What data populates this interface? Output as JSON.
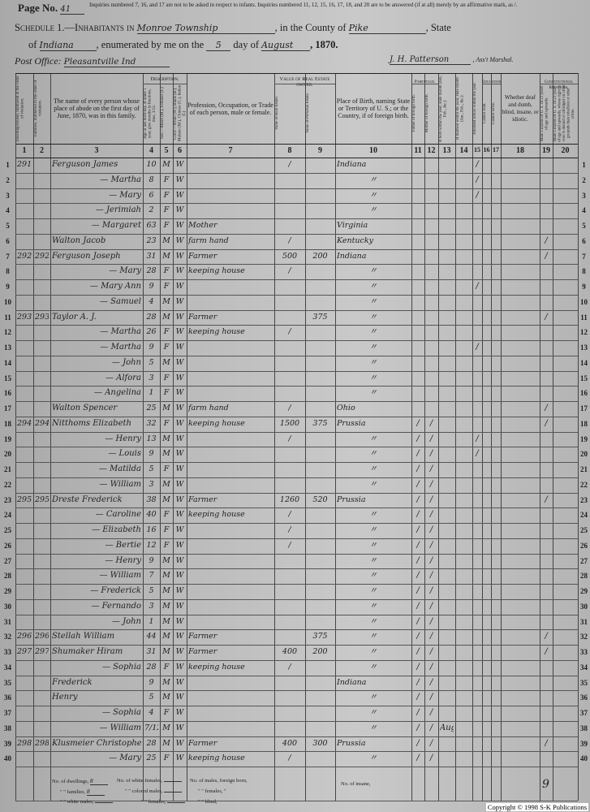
{
  "header": {
    "page_label": "Page No.",
    "page_number": "41",
    "instructions": "Inquiries numbered 7, 16, and 17 are not to be asked in respect to infants. Inquiries numbered 11, 12, 15, 16, 17, 18, and 20 are to be answered (if at all) merely by an affirmative mark, as /.",
    "schedule_label": "Schedule 1.—Inhabitants in",
    "township": "Monroe Township",
    "county_label": ", in the County of",
    "county": "Pike",
    "state_label": ", State",
    "of_label": "of",
    "state": "Indiana",
    "enumerated_label": ", enumerated by me on the",
    "day": "5",
    "day_of_label": "day of",
    "month": "August",
    "year": ", 1870.",
    "post_office_label": "Post Office:",
    "post_office": "Pleasantville Ind",
    "marshal_signature": "J. H. Patterson",
    "marshal_label": ", Ass't Marshal."
  },
  "columns": {
    "group_description": "Description.",
    "group_value": "Value of Real Estate owned.",
    "group_parentage": "Parentage.",
    "group_education": "Education.",
    "group_constitutional": "Constitutional Relations.",
    "c1": "Dwelling-houses, numbered in the order of visitation.",
    "c2": "Families, numbered in the order of visitation.",
    "c3": "The name of every person whose place of abode on the first day of June, 1870, was in this family.",
    "c4": "Age at last birth-day. If under 1 year, give months in fractions, thus, 3/12.",
    "c5": "Sex.—Males (M.), Females (F.)",
    "c6": "Color.—White (W.), Black (B.), Mulatto (M.), Chinese (C.), Indian (I.)",
    "c7": "Profession, Occupation, or Trade of each person, male or female.",
    "c8": "Value of Real Estate.",
    "c9": "Value of Personal Estate.",
    "c10": "Place of Birth, naming State or Territory of U. S.; or the Country, if of foreign birth.",
    "c11": "Father of foreign birth.",
    "c12": "Mother of foreign birth.",
    "c13": "If born within the year, state month (Jan., Feb., &c.)",
    "c14": "If married within the year, state month (Jan., Feb., &c.)",
    "c15": "Attended school within the year.",
    "c16": "Cannot read.",
    "c17": "Cannot write.",
    "c18": "Whether deaf and dumb, blind, insane, or idiotic.",
    "c19": "Male Citizens of U. S. of 21 years of age and upwards.",
    "c20": "Male Citizens of U. S. of 21 years of age and upwards, whose right to vote is denied or abridged on other grounds than rebellion or other crime.",
    "numbers": [
      "1",
      "2",
      "3",
      "4",
      "5",
      "6",
      "7",
      "8",
      "9",
      "10",
      "11",
      "12",
      "13",
      "14",
      "15",
      "16",
      "17",
      "18",
      "19",
      "20"
    ]
  },
  "rows": [
    [
      "291",
      "",
      "Ferguson James",
      "10",
      "M",
      "W",
      "",
      "/",
      "",
      "Indiana",
      "",
      "",
      "",
      "",
      "/",
      "",
      "",
      "",
      "",
      ""
    ],
    [
      "",
      "",
      "— Martha",
      "8",
      "F",
      "W",
      "",
      "",
      "",
      "〃",
      "",
      "",
      "",
      "",
      "/",
      "",
      "",
      "",
      "",
      ""
    ],
    [
      "",
      "",
      "— Mary",
      "6",
      "F",
      "W",
      "",
      "",
      "",
      "〃",
      "",
      "",
      "",
      "",
      "/",
      "",
      "",
      "",
      "",
      ""
    ],
    [
      "",
      "",
      "— Jerimiah",
      "2",
      "F",
      "W",
      "",
      "",
      "",
      "〃",
      "",
      "",
      "",
      "",
      "",
      "",
      "",
      "",
      "",
      ""
    ],
    [
      "",
      "",
      "— Margaret",
      "63",
      "F",
      "W",
      "Mother",
      "",
      "",
      "Virginia",
      "",
      "",
      "",
      "",
      "",
      "",
      "",
      "",
      "",
      ""
    ],
    [
      "",
      "",
      "Walton Jacob",
      "23",
      "M",
      "W",
      "farm hand",
      "/",
      "",
      "Kentucky",
      "",
      "",
      "",
      "",
      "",
      "",
      "",
      "",
      "/",
      ""
    ],
    [
      "292",
      "292",
      "Ferguson Joseph",
      "31",
      "M",
      "W",
      "Farmer",
      "500",
      "200",
      "Indiana",
      "",
      "",
      "",
      "",
      "",
      "",
      "",
      "",
      "/",
      ""
    ],
    [
      "",
      "",
      "— Mary",
      "28",
      "F",
      "W",
      "keeping house",
      "/",
      "",
      "〃",
      "",
      "",
      "",
      "",
      "",
      "",
      "",
      "",
      "",
      ""
    ],
    [
      "",
      "",
      "— Mary Ann",
      "9",
      "F",
      "W",
      "",
      "",
      "",
      "〃",
      "",
      "",
      "",
      "",
      "/",
      "",
      "",
      "",
      "",
      ""
    ],
    [
      "",
      "",
      "— Samuel",
      "4",
      "M",
      "W",
      "",
      "",
      "",
      "〃",
      "",
      "",
      "",
      "",
      "",
      "",
      "",
      "",
      "",
      ""
    ],
    [
      "293",
      "293",
      "Taylor A. J.",
      "28",
      "M",
      "W",
      "Farmer",
      "",
      "375",
      "〃",
      "",
      "",
      "",
      "",
      "",
      "",
      "",
      "",
      "/",
      ""
    ],
    [
      "",
      "",
      "— Martha",
      "26",
      "F",
      "W",
      "keeping house",
      "/",
      "",
      "〃",
      "",
      "",
      "",
      "",
      "",
      "",
      "",
      "",
      "",
      ""
    ],
    [
      "",
      "",
      "— Martha",
      "9",
      "F",
      "W",
      "",
      "",
      "",
      "〃",
      "",
      "",
      "",
      "",
      "/",
      "",
      "",
      "",
      "",
      ""
    ],
    [
      "",
      "",
      "— John",
      "5",
      "M",
      "W",
      "",
      "",
      "",
      "〃",
      "",
      "",
      "",
      "",
      "",
      "",
      "",
      "",
      "",
      ""
    ],
    [
      "",
      "",
      "— Alfora",
      "3",
      "F",
      "W",
      "",
      "",
      "",
      "〃",
      "",
      "",
      "",
      "",
      "",
      "",
      "",
      "",
      "",
      ""
    ],
    [
      "",
      "",
      "— Angelina",
      "1",
      "F",
      "W",
      "",
      "",
      "",
      "〃",
      "",
      "",
      "",
      "",
      "",
      "",
      "",
      "",
      "",
      ""
    ],
    [
      "",
      "",
      "Walton Spencer",
      "25",
      "M",
      "W",
      "farm hand",
      "/",
      "",
      "Ohio",
      "",
      "",
      "",
      "",
      "",
      "",
      "",
      "",
      "/",
      ""
    ],
    [
      "294",
      "294",
      "Nitthoms Elizabeth",
      "32",
      "F",
      "W",
      "keeping house",
      "1500",
      "375",
      "Prussia",
      "/",
      "/",
      "",
      "",
      "",
      "",
      "",
      "",
      "/",
      ""
    ],
    [
      "",
      "",
      "— Henry",
      "13",
      "M",
      "W",
      "",
      "/",
      "",
      "〃",
      "/",
      "/",
      "",
      "",
      "/",
      "",
      "",
      "",
      "",
      ""
    ],
    [
      "",
      "",
      "— Louis",
      "9",
      "M",
      "W",
      "",
      "",
      "",
      "〃",
      "/",
      "/",
      "",
      "",
      "/",
      "",
      "",
      "",
      "",
      ""
    ],
    [
      "",
      "",
      "— Matilda",
      "5",
      "F",
      "W",
      "",
      "",
      "",
      "〃",
      "/",
      "/",
      "",
      "",
      "",
      "",
      "",
      "",
      "",
      ""
    ],
    [
      "",
      "",
      "— William",
      "3",
      "M",
      "W",
      "",
      "",
      "",
      "〃",
      "/",
      "/",
      "",
      "",
      "",
      "",
      "",
      "",
      "",
      ""
    ],
    [
      "295",
      "295",
      "Dreste Frederick",
      "38",
      "M",
      "W",
      "Farmer",
      "1260",
      "520",
      "Prussia",
      "/",
      "/",
      "",
      "",
      "",
      "",
      "",
      "",
      "/",
      ""
    ],
    [
      "",
      "",
      "— Caroline",
      "40",
      "F",
      "W",
      "keeping house",
      "/",
      "",
      "〃",
      "/",
      "/",
      "",
      "",
      "",
      "",
      "",
      "",
      "",
      ""
    ],
    [
      "",
      "",
      "— Elizabeth",
      "16",
      "F",
      "W",
      "",
      "/",
      "",
      "〃",
      "/",
      "/",
      "",
      "",
      "",
      "",
      "",
      "",
      "",
      ""
    ],
    [
      "",
      "",
      "— Bertie",
      "12",
      "F",
      "W",
      "",
      "/",
      "",
      "〃",
      "/",
      "/",
      "",
      "",
      "",
      "",
      "",
      "",
      "",
      ""
    ],
    [
      "",
      "",
      "— Henry",
      "9",
      "M",
      "W",
      "",
      "",
      "",
      "〃",
      "/",
      "/",
      "",
      "",
      "",
      "",
      "",
      "",
      "",
      ""
    ],
    [
      "",
      "",
      "— William",
      "7",
      "M",
      "W",
      "",
      "",
      "",
      "〃",
      "/",
      "/",
      "",
      "",
      "",
      "",
      "",
      "",
      "",
      ""
    ],
    [
      "",
      "",
      "— Frederick",
      "5",
      "M",
      "W",
      "",
      "",
      "",
      "〃",
      "/",
      "/",
      "",
      "",
      "",
      "",
      "",
      "",
      "",
      ""
    ],
    [
      "",
      "",
      "— Fernando",
      "3",
      "M",
      "W",
      "",
      "",
      "",
      "〃",
      "/",
      "/",
      "",
      "",
      "",
      "",
      "",
      "",
      "",
      ""
    ],
    [
      "",
      "",
      "— John",
      "1",
      "M",
      "W",
      "",
      "",
      "",
      "〃",
      "/",
      "/",
      "",
      "",
      "",
      "",
      "",
      "",
      "",
      ""
    ],
    [
      "296",
      "296",
      "Stellah William",
      "44",
      "M",
      "W",
      "Farmer",
      "",
      "375",
      "〃",
      "/",
      "/",
      "",
      "",
      "",
      "",
      "",
      "",
      "/",
      ""
    ],
    [
      "297",
      "297",
      "Shumaker Hiram",
      "31",
      "M",
      "W",
      "Farmer",
      "400",
      "200",
      "〃",
      "/",
      "/",
      "",
      "",
      "",
      "",
      "",
      "",
      "/",
      ""
    ],
    [
      "",
      "",
      "— Sophia",
      "28",
      "F",
      "W",
      "keeping house",
      "/",
      "",
      "〃",
      "/",
      "/",
      "",
      "",
      "",
      "",
      "",
      "",
      "",
      ""
    ],
    [
      "",
      "",
      "Frederick",
      "9",
      "M",
      "W",
      "",
      "",
      "",
      "Indiana",
      "/",
      "/",
      "",
      "",
      "",
      "",
      "",
      "",
      "",
      ""
    ],
    [
      "",
      "",
      "Henry",
      "5",
      "M",
      "W",
      "",
      "",
      "",
      "〃",
      "/",
      "/",
      "",
      "",
      "",
      "",
      "",
      "",
      "",
      ""
    ],
    [
      "",
      "",
      "— Sophia",
      "4",
      "F",
      "W",
      "",
      "",
      "",
      "〃",
      "/",
      "/",
      "",
      "",
      "",
      "",
      "",
      "",
      "",
      ""
    ],
    [
      "",
      "",
      "— William",
      "7/12",
      "M",
      "W",
      "",
      "",
      "",
      "〃",
      "/",
      "/",
      "Aug",
      "",
      "",
      "",
      "",
      "",
      "",
      ""
    ],
    [
      "298",
      "298",
      "Klusmeier Christopher",
      "28",
      "M",
      "W",
      "Farmer",
      "400",
      "300",
      "Prussia",
      "/",
      "/",
      "",
      "",
      "",
      "",
      "",
      "",
      "/",
      ""
    ],
    [
      "",
      "",
      "— Mary",
      "25",
      "F",
      "W",
      "keeping house",
      "/",
      "",
      "〃",
      "/",
      "/",
      "",
      "",
      "",
      "",
      "",
      "",
      "",
      ""
    ]
  ],
  "footer": {
    "dwellings_label": "No. of dwellings,",
    "dwellings": "8",
    "families_label": "\" \" families,",
    "families": "8",
    "white_males_label": "\" \" white males,",
    "white_females_label": "No. of white females,",
    "colored_males_label": "\" \" colored males,",
    "colored_females_label": "\" \" females,",
    "foreign_males_label": "No. of males, foreign born,",
    "foreign_females_label": "\" \" females, \"",
    "blind_label": "\" \" blind,",
    "insane_label": "No. of insane,",
    "tally": "9",
    "copyright": "Copyright © 1998 S-K Publications"
  }
}
